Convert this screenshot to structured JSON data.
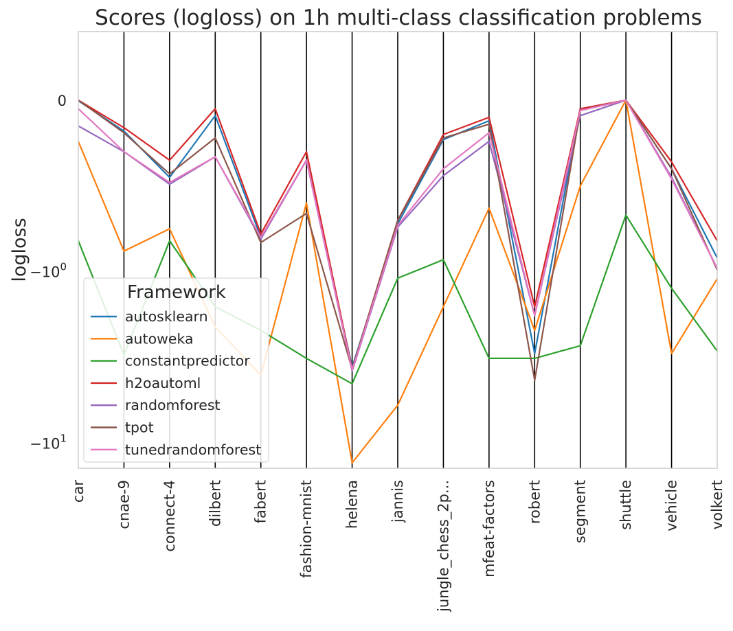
{
  "chart_data": {
    "type": "line",
    "title": "Scores (logloss) on 1h multi-class classification problems",
    "xlabel": "",
    "ylabel": "logloss",
    "yscale": "symlog",
    "ylim": [
      -14,
      0.4
    ],
    "yticks": [
      {
        "value": 0,
        "label": "0",
        "sup": ""
      },
      {
        "value": -1,
        "label": "−10",
        "sup": "0"
      },
      {
        "value": -10,
        "label": "−10",
        "sup": "1"
      }
    ],
    "grid": "vertical lines at every category",
    "legend_position": "lower-left",
    "legend_title": "Framework",
    "categories": [
      "car",
      "cnae-9",
      "connect-4",
      "dilbert",
      "fabert",
      "fashion-mnist",
      "helena",
      "jannis",
      "jungle_chess_2p...",
      "mfeat-factors",
      "robert",
      "segment",
      "shuttle",
      "vehicle",
      "volkert"
    ],
    "series": [
      {
        "name": "autosklearn",
        "color": "#1f77b4",
        "values": [
          -0.003,
          -0.18,
          -0.45,
          -0.09,
          -0.8,
          -0.35,
          -3.6,
          -0.72,
          -0.23,
          -0.12,
          -3.0,
          -0.05,
          0.0,
          -0.4,
          -0.92
        ]
      },
      {
        "name": "autoweka",
        "color": "#ff7f0e",
        "values": [
          -0.24,
          -0.88,
          -0.75,
          -2.1,
          -4.0,
          -0.6,
          -13.0,
          -6.0,
          -1.6,
          -0.63,
          -2.2,
          -0.5,
          0.0,
          -3.0,
          -1.1
        ]
      },
      {
        "name": "constantpredictor",
        "color": "#2ca02c",
        "values": [
          -0.82,
          -3.05,
          -0.82,
          -1.6,
          -2.2,
          -3.2,
          -4.5,
          -1.09,
          -0.93,
          -3.2,
          -3.2,
          -2.7,
          -0.67,
          -1.25,
          -2.9
        ]
      },
      {
        "name": "h2oautoml",
        "color": "#d62728",
        "values": [
          0.0,
          -0.16,
          -0.35,
          -0.05,
          -0.78,
          -0.3,
          -3.7,
          -0.7,
          -0.2,
          -0.1,
          -1.6,
          -0.05,
          0.0,
          -0.36,
          -0.82
        ]
      },
      {
        "name": "randomforest",
        "color": "#9467bd",
        "values": [
          -0.15,
          -0.3,
          -0.49,
          -0.33,
          -0.81,
          -0.35,
          -3.8,
          -0.74,
          -0.44,
          -0.24,
          -1.8,
          -0.09,
          0.0,
          -0.45,
          -0.98
        ]
      },
      {
        "name": "tpot",
        "color": "#8c564b",
        "values": [
          0.0,
          -0.19,
          -0.43,
          -0.22,
          -0.83,
          -0.66,
          -3.7,
          -0.7,
          -0.22,
          -0.14,
          -4.3,
          -0.06,
          0.0,
          -0.4,
          -0.99
        ]
      },
      {
        "name": "tunedrandomforest",
        "color": "#e377c2",
        "values": [
          -0.05,
          -0.3,
          -0.48,
          -0.33,
          -0.8,
          -0.35,
          -3.75,
          -0.73,
          -0.4,
          -0.19,
          -1.8,
          -0.06,
          0.0,
          -0.46,
          -0.98
        ]
      }
    ]
  }
}
